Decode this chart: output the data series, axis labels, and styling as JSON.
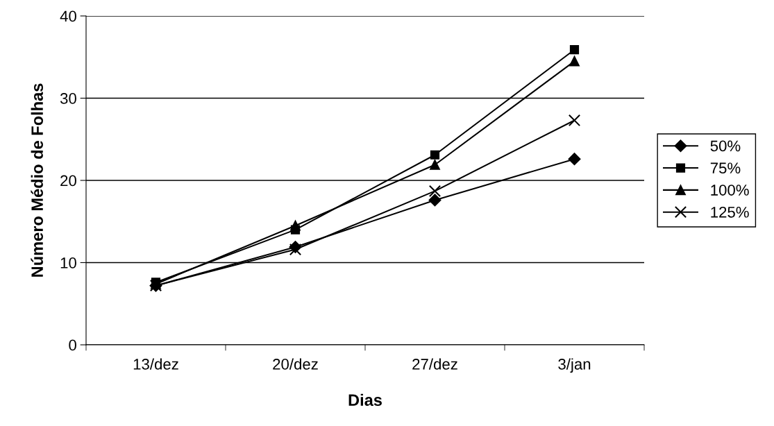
{
  "chart_data": {
    "type": "line",
    "xlabel": "Dias",
    "ylabel": "Número Médio de Folhas",
    "categories": [
      "13/dez",
      "20/dez",
      "27/dez",
      "3/jan"
    ],
    "series": [
      {
        "name": "50%",
        "color": "#000000",
        "marker": "diamond",
        "values": [
          7.2,
          11.9,
          17.6,
          22.6
        ]
      },
      {
        "name": "75%",
        "color": "#000000",
        "marker": "square",
        "values": [
          7.6,
          14.0,
          23.1,
          35.9
        ]
      },
      {
        "name": "100%",
        "color": "#000000",
        "marker": "triangle",
        "values": [
          7.4,
          14.5,
          21.9,
          34.5
        ]
      },
      {
        "name": "125%",
        "color": "#000000",
        "marker": "cross",
        "values": [
          7.2,
          11.6,
          18.7,
          27.3
        ]
      }
    ],
    "ylim": [
      0,
      40
    ],
    "yticks": [
      0,
      10,
      20,
      30,
      40
    ],
    "grid": "y",
    "legend": "right",
    "line_style": "solid"
  }
}
